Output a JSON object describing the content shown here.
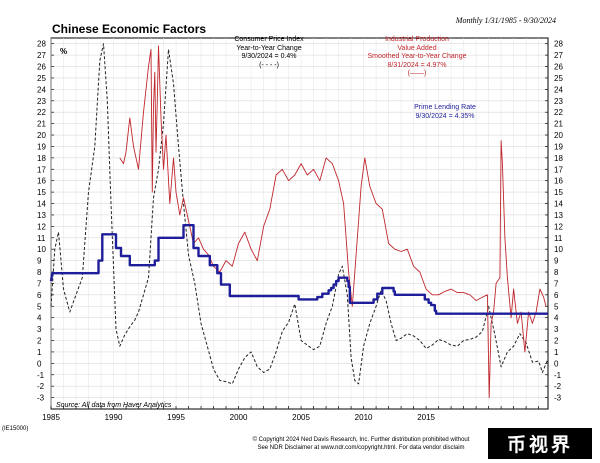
{
  "page": {
    "title": "Chinese Economic Factors",
    "period": "Monthly 1/31/1985 - 9/30/2024",
    "code": "(IE15000)",
    "source": "Source: All data from Haver Analytics",
    "copyright_line1": "© Copyright 2024 Ned Davis Research, Inc. Further distribution prohibited without",
    "copyright_line2": "See NDR Disclaimer at www.ndr.com/copyright.html. For data vendor disclaim",
    "watermark": "币视界"
  },
  "chart_data": {
    "type": "line",
    "ylabel": "%",
    "ylim": [
      -4,
      28.5
    ],
    "xlim": [
      1985,
      2024.75
    ],
    "y_ticks": [
      -3,
      -2,
      -1,
      0,
      1,
      2,
      3,
      4,
      5,
      6,
      7,
      8,
      9,
      10,
      11,
      12,
      13,
      14,
      15,
      16,
      17,
      18,
      19,
      20,
      21,
      22,
      23,
      24,
      25,
      26,
      27,
      28
    ],
    "x_ticks": [
      1985,
      1990,
      1995,
      2000,
      2005,
      2010,
      2015
    ],
    "grid": true,
    "annotations": {
      "cpi": [
        "Consumer Price Index",
        "Year-to-Year Change",
        "9/30/2024 = 0.4%",
        "(- - - -)"
      ],
      "ip": [
        "Industrial Production",
        "Value Added",
        "Smoothed Year-to-Year Change",
        "8/31/2024 = 4.97%",
        "(——)"
      ],
      "prime": [
        "Prime Lending Rate",
        "9/30/2024 = 4.35%"
      ]
    },
    "series": [
      {
        "name": "Consumer Price Index Year-to-Year Change",
        "style": "dashed",
        "color": "#222222",
        "x": [
          1985.0,
          1985.3,
          1985.6,
          1986.0,
          1986.5,
          1987.0,
          1987.5,
          1988.0,
          1988.5,
          1988.9,
          1989.2,
          1989.5,
          1989.8,
          1990.2,
          1990.5,
          1990.9,
          1991.3,
          1991.7,
          1992.0,
          1992.4,
          1992.8,
          1993.2,
          1993.6,
          1994.0,
          1994.4,
          1994.8,
          1995.2,
          1995.6,
          1996.0,
          1996.5,
          1997.0,
          1997.5,
          1998.0,
          1998.5,
          1999.0,
          1999.5,
          2000.0,
          2000.5,
          2001.0,
          2001.5,
          2002.0,
          2002.5,
          2003.0,
          2003.5,
          2004.0,
          2004.5,
          2005.0,
          2005.5,
          2006.0,
          2006.5,
          2007.0,
          2007.5,
          2008.0,
          2008.3,
          2008.7,
          2009.0,
          2009.3,
          2009.6,
          2010.0,
          2010.5,
          2011.0,
          2011.4,
          2011.8,
          2012.2,
          2012.6,
          2013.0,
          2013.5,
          2014.0,
          2014.5,
          2015.0,
          2015.5,
          2016.0,
          2016.5,
          2017.0,
          2017.5,
          2018.0,
          2018.5,
          2019.0,
          2019.5,
          2020.0,
          2020.5,
          2021.0,
          2021.5,
          2022.0,
          2022.5,
          2023.0,
          2023.5,
          2024.0,
          2024.3,
          2024.75
        ],
        "y": [
          5.0,
          10.0,
          11.5,
          6.5,
          4.5,
          6.0,
          7.5,
          15.0,
          19.0,
          26.5,
          28.0,
          23.0,
          14.0,
          3.0,
          1.5,
          2.5,
          3.2,
          3.8,
          4.5,
          6.0,
          7.5,
          14.5,
          17.0,
          21.0,
          27.5,
          24.5,
          19.0,
          14.0,
          9.5,
          7.0,
          3.5,
          1.5,
          -0.5,
          -1.5,
          -1.6,
          -1.8,
          -0.5,
          0.5,
          1.0,
          -0.3,
          -0.8,
          -0.5,
          1.0,
          2.8,
          3.6,
          5.2,
          2.0,
          1.6,
          1.2,
          1.5,
          3.5,
          5.0,
          7.8,
          8.5,
          6.0,
          0.5,
          -1.5,
          -1.8,
          1.5,
          3.5,
          5.0,
          6.4,
          5.5,
          3.5,
          2.0,
          2.2,
          2.6,
          2.4,
          2.0,
          1.3,
          1.6,
          2.1,
          1.9,
          1.6,
          1.5,
          2.0,
          2.1,
          2.3,
          2.8,
          5.0,
          2.5,
          -0.3,
          1.0,
          1.5,
          2.6,
          1.8,
          0.1,
          0.2,
          -0.8,
          0.4
        ]
      },
      {
        "name": "Industrial Production Value Added Smoothed Year-to-Year Change",
        "style": "solid",
        "color": "#c0272d",
        "x": [
          1990.5,
          1990.8,
          1991.0,
          1991.3,
          1991.6,
          1992.0,
          1992.2,
          1992.4,
          1992.6,
          1992.8,
          1993.0,
          1993.1,
          1993.2,
          1993.3,
          1993.4,
          1993.5,
          1993.6,
          1993.8,
          1994.0,
          1994.2,
          1994.5,
          1994.8,
          1995.0,
          1995.3,
          1995.6,
          1996.0,
          1996.4,
          1996.8,
          1997.2,
          1997.6,
          1998.0,
          1998.5,
          1999.0,
          1999.5,
          2000.0,
          2000.5,
          2001.0,
          2001.5,
          2002.0,
          2002.5,
          2003.0,
          2003.5,
          2004.0,
          2004.5,
          2005.0,
          2005.5,
          2006.0,
          2006.5,
          2007.0,
          2007.5,
          2008.0,
          2008.4,
          2008.8,
          2009.1,
          2009.4,
          2009.8,
          2010.1,
          2010.5,
          2011.0,
          2011.5,
          2012.0,
          2012.5,
          2013.0,
          2013.5,
          2014.0,
          2014.5,
          2015.0,
          2015.5,
          2016.0,
          2016.5,
          2017.0,
          2017.5,
          2018.0,
          2018.5,
          2019.0,
          2019.5,
          2019.9,
          2020.05,
          2020.2,
          2020.4,
          2020.6,
          2020.9,
          2021.0,
          2021.1,
          2021.3,
          2021.5,
          2021.8,
          2022.0,
          2022.3,
          2022.6,
          2022.9,
          2023.2,
          2023.5,
          2023.8,
          2024.1,
          2024.4,
          2024.6
        ],
        "y": [
          18.0,
          17.5,
          18.5,
          21.5,
          19.0,
          17.0,
          19.5,
          22.0,
          24.0,
          26.0,
          27.5,
          15.0,
          22.5,
          25.5,
          18.5,
          23.0,
          27.8,
          21.5,
          17.0,
          20.0,
          14.0,
          18.0,
          15.0,
          13.0,
          14.5,
          12.5,
          10.5,
          11.0,
          10.0,
          9.5,
          8.5,
          8.0,
          9.0,
          8.5,
          10.5,
          11.5,
          10.0,
          9.0,
          12.0,
          13.5,
          16.5,
          17.0,
          16.0,
          16.5,
          17.5,
          16.5,
          17.0,
          16.0,
          18.0,
          17.5,
          16.0,
          14.0,
          8.0,
          5.0,
          9.5,
          15.5,
          18.0,
          15.5,
          14.0,
          13.5,
          10.5,
          10.0,
          9.8,
          10.0,
          8.5,
          8.0,
          6.5,
          6.0,
          6.0,
          6.3,
          6.5,
          6.2,
          6.2,
          6.0,
          5.5,
          5.8,
          6.0,
          -3.0,
          3.5,
          4.5,
          7.0,
          7.5,
          19.5,
          17.5,
          11.0,
          7.5,
          4.0,
          6.5,
          3.5,
          4.5,
          1.0,
          4.5,
          3.5,
          4.5,
          6.5,
          5.8,
          4.97
        ]
      },
      {
        "name": "Prime Lending Rate",
        "style": "solid",
        "color": "#1e1e9a",
        "x": [
          1985.0,
          1985.1,
          1988.8,
          1988.8,
          1989.1,
          1989.1,
          1990.2,
          1990.2,
          1990.6,
          1990.6,
          1991.3,
          1991.3,
          1993.3,
          1993.3,
          1993.6,
          1993.6,
          1995.6,
          1995.6,
          1996.4,
          1996.4,
          1996.8,
          1996.8,
          1997.7,
          1997.7,
          1998.3,
          1998.3,
          1998.6,
          1998.6,
          1999.3,
          1999.3,
          2004.8,
          2004.8,
          2006.3,
          2006.3,
          2006.7,
          2006.7,
          2007.2,
          2007.2,
          2007.4,
          2007.4,
          2007.6,
          2007.6,
          2007.8,
          2007.8,
          2008.0,
          2008.0,
          2008.7,
          2008.7,
          2008.8,
          2008.8,
          2008.9,
          2008.9,
          2010.8,
          2010.8,
          2011.1,
          2011.1,
          2011.5,
          2011.5,
          2012.4,
          2012.4,
          2012.5,
          2012.5,
          2014.9,
          2014.9,
          2015.2,
          2015.2,
          2015.4,
          2015.4,
          2015.7,
          2015.7,
          2015.8,
          2015.8,
          2019.8,
          2019.8,
          2024.75
        ],
        "y": [
          7.2,
          7.9,
          7.9,
          9.0,
          9.0,
          11.3,
          11.3,
          10.1,
          10.1,
          9.4,
          9.4,
          8.6,
          8.6,
          9.0,
          9.0,
          11.0,
          11.0,
          12.1,
          12.1,
          10.1,
          10.1,
          9.4,
          9.4,
          8.6,
          8.6,
          7.9,
          7.9,
          6.9,
          6.9,
          5.9,
          5.9,
          5.6,
          5.6,
          5.8,
          5.8,
          6.1,
          6.1,
          6.4,
          6.4,
          6.6,
          6.6,
          6.9,
          6.9,
          7.2,
          7.2,
          7.5,
          7.5,
          7.2,
          7.2,
          6.7,
          6.7,
          5.3,
          5.3,
          5.6,
          5.6,
          6.1,
          6.1,
          6.6,
          6.6,
          6.3,
          6.3,
          6.0,
          6.0,
          5.6,
          5.6,
          5.3,
          5.3,
          5.1,
          5.1,
          4.6,
          4.6,
          4.35,
          4.35,
          4.35,
          4.35
        ]
      }
    ]
  }
}
